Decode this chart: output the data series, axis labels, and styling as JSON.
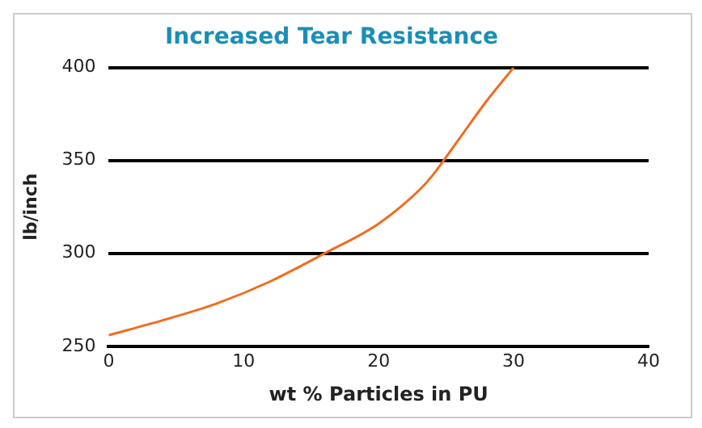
{
  "chart_data": {
    "type": "line",
    "title": "Increased Tear Resistance",
    "xlabel": "wt % Particles in PU",
    "ylabel": "lb/inch",
    "series": [
      {
        "color": "#f26c1f",
        "x": [
          0,
          4,
          8,
          12,
          16,
          20,
          23,
          24,
          26,
          28,
          30
        ],
        "values": [
          256,
          264,
          273,
          285,
          300,
          316,
          334,
          342,
          362,
          382,
          400
        ]
      }
    ],
    "xlim": [
      0,
      40
    ],
    "xticks": [
      0,
      10,
      20,
      30,
      40
    ],
    "ylim": [
      250,
      400
    ],
    "yticks": [
      250,
      300,
      350,
      400
    ],
    "grid": "y",
    "legend": false,
    "marker": "none",
    "line_style": "solid"
  }
}
